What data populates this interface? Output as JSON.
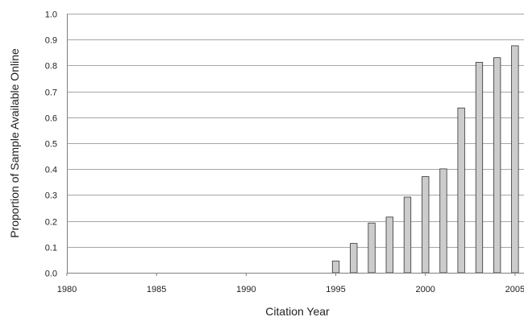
{
  "chart_data": {
    "type": "bar",
    "title": "",
    "xlabel": "Citation Year",
    "ylabel": "Proportion of Sample Available Online",
    "xlim": [
      1980,
      2005.5
    ],
    "ylim": [
      0,
      1.0
    ],
    "x_ticks": [
      "1980",
      "1985",
      "1990",
      "1995",
      "2000",
      "2005"
    ],
    "y_ticks": [
      "0.0",
      "0.1",
      "0.2",
      "0.3",
      "0.4",
      "0.5",
      "0.6",
      "0.7",
      "0.8",
      "0.9",
      "1.0"
    ],
    "grid": true,
    "legend": "none",
    "bar_color": "#cccccc",
    "bar_edge_color": "#333333",
    "categories": [
      1995,
      1996,
      1997,
      1998,
      1999,
      2000,
      2001,
      2002,
      2003,
      2004,
      2005
    ],
    "values": [
      0.045,
      0.113,
      0.192,
      0.215,
      0.292,
      0.371,
      0.401,
      0.636,
      0.812,
      0.83,
      0.876
    ]
  }
}
